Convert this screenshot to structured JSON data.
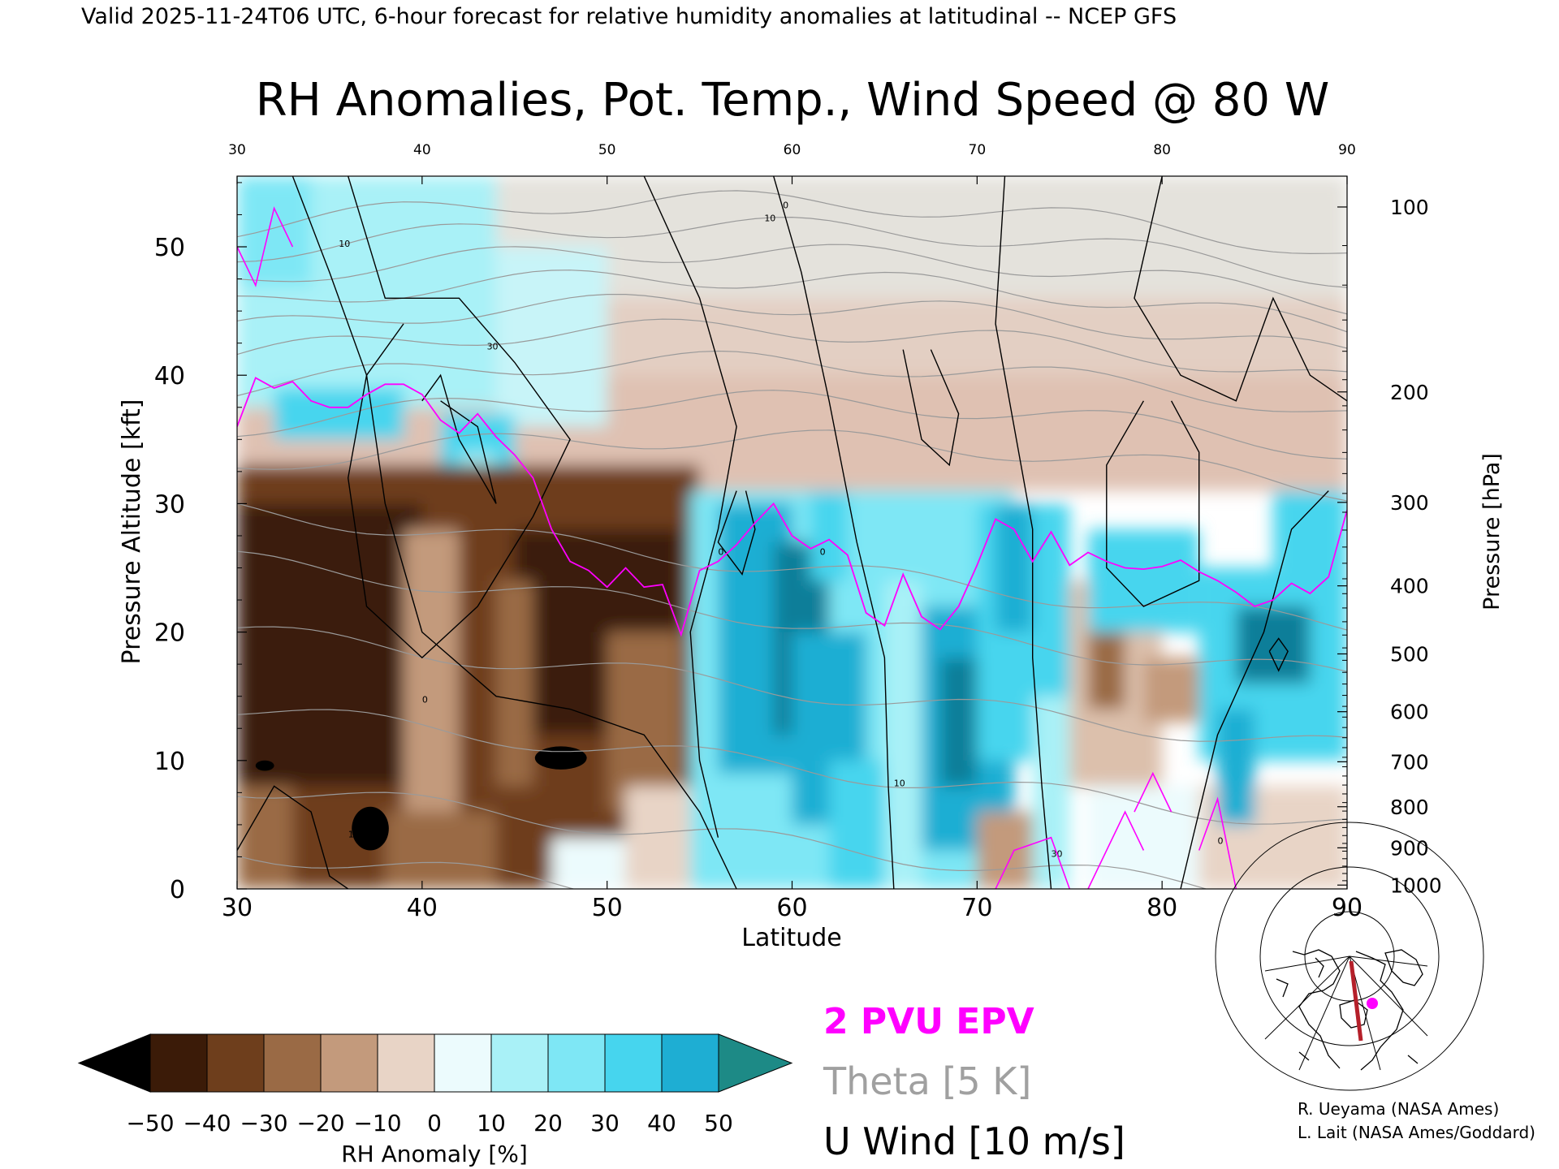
{
  "header": "Valid 2025-11-24T06 UTC, 6-hour forecast for relative humidity anomalies at latitudinal -- NCEP GFS",
  "chart_data": {
    "type": "heatmap",
    "title": "RH Anomalies, Pot. Temp., Wind Speed @ 80 W",
    "xlabel": "Latitude",
    "ylabel": "Pressure Altitude [kft]",
    "y2label": "Pressure [hPa]",
    "xlim": [
      30,
      90
    ],
    "ylim": [
      0,
      55.5
    ],
    "x_ticks": [
      "30",
      "40",
      "50",
      "60",
      "70",
      "80",
      "90"
    ],
    "top_ticks": [
      "30",
      "40",
      "50",
      "60",
      "70",
      "80",
      "90"
    ],
    "y_ticks": [
      "0",
      "10",
      "20",
      "30",
      "40",
      "50"
    ],
    "pressure_ticks": [
      {
        "label": "100",
        "kft": 53.1
      },
      {
        "label": "200",
        "kft": 38.7
      },
      {
        "label": "300",
        "kft": 30.1
      },
      {
        "label": "400",
        "kft": 23.6
      },
      {
        "label": "500",
        "kft": 18.3
      },
      {
        "label": "600",
        "kft": 13.8
      },
      {
        "label": "700",
        "kft": 9.9
      },
      {
        "label": "800",
        "kft": 6.4
      },
      {
        "label": "900",
        "kft": 3.2
      },
      {
        "label": "1000",
        "kft": 0.3
      }
    ],
    "colorbar": {
      "label": "RH Anomaly [%]",
      "tick_labels": [
        "−50",
        "−40",
        "−30",
        "−20",
        "−10",
        "0",
        "10",
        "20",
        "30",
        "40",
        "50"
      ],
      "colors": [
        "#3b1b08",
        "#6e3e1c",
        "#9a6a45",
        "#c39a7c",
        "#e8d4c6",
        "#ecfbfd",
        "#a9f1f7",
        "#7ee7f5",
        "#46d5ee",
        "#1eaed3",
        "#0b7e99"
      ],
      "under_color": "#000000",
      "over_color": "#1d8a86"
    },
    "legend": [
      {
        "label": "2 PVU EPV",
        "color": "#ff00ff"
      },
      {
        "label": "Theta [5 K]",
        "color": "#a0a0a0"
      },
      {
        "label": "U Wind [10 m/s]",
        "color": "#000000"
      }
    ],
    "series": [
      {
        "name": "2 PVU EPV",
        "x": [
          30,
          31,
          32,
          33,
          34,
          35,
          36,
          37,
          38,
          39,
          40,
          41,
          42,
          43,
          44,
          45,
          46,
          47,
          48,
          49,
          50,
          51,
          52,
          53,
          54,
          55,
          56,
          57,
          58,
          59,
          60,
          61,
          62,
          63,
          64,
          65,
          66,
          67,
          68,
          69,
          70,
          71,
          72,
          73,
          74,
          75,
          76,
          77,
          78,
          79,
          80,
          81,
          82,
          83,
          84,
          85,
          86,
          87,
          88,
          89,
          90
        ],
        "y": [
          36,
          39.8,
          39,
          39.5,
          38,
          37.5,
          37.5,
          38.5,
          39.3,
          39.3,
          38.5,
          36.5,
          35.5,
          37,
          35.2,
          33.8,
          32,
          28,
          25.5,
          24.8,
          23.5,
          25,
          23.5,
          23.7,
          19.8,
          24.8,
          25.5,
          26.8,
          28.5,
          30,
          27.5,
          26.5,
          27.2,
          26,
          21.5,
          20.5,
          24.5,
          21.2,
          20.2,
          22,
          25.2,
          28.8,
          28,
          25.5,
          27.8,
          25.2,
          26.2,
          25.5,
          25,
          24.9,
          25.1,
          25.6,
          24.7,
          24,
          23.1,
          22,
          22.5,
          23.8,
          23,
          24.3,
          29.5
        ]
      },
      {
        "name": "Theta",
        "levels_K": [
          280,
          290,
          300,
          310,
          320,
          330,
          340,
          350,
          360,
          370,
          380,
          390,
          400,
          410,
          420
        ]
      }
    ],
    "contour_labels": [
      "10",
      "30",
      "0",
      "10",
      "0",
      "0",
      "10",
      "30",
      "10",
      "0",
      "0"
    ]
  },
  "inset_map": {
    "point_color": "#ff00ff",
    "line_color": "#b5202a"
  },
  "credits": [
    "R. Ueyama (NASA Ames)",
    "L. Lait (NASA Ames/Goddard)"
  ]
}
